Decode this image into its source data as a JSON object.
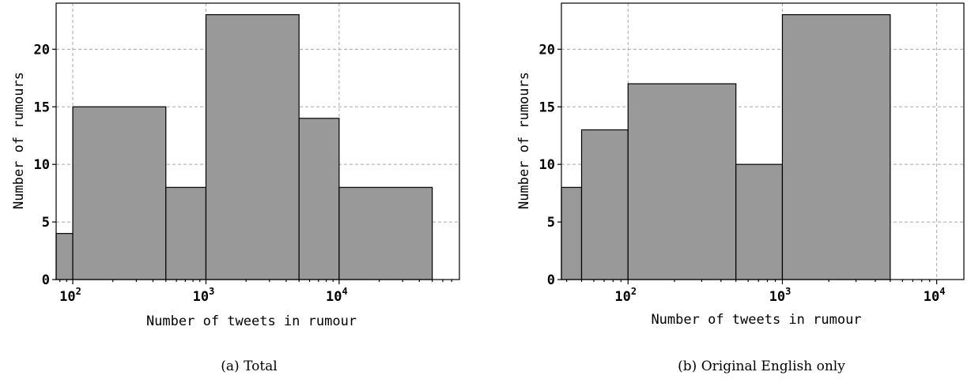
{
  "captions": [
    "(a) Total",
    "(b) Original English only"
  ],
  "colors": {
    "bar_fill": "#999999",
    "bar_edge": "#000000",
    "grid": "#a8a8a8"
  },
  "chart_data": [
    {
      "type": "bar",
      "subtype": "histogram",
      "caption": "(a) Total",
      "xlabel": "Number of tweets in rumour",
      "ylabel": "Number of rumours",
      "xscale": "log",
      "xlim": [
        75,
        80000
      ],
      "ylim": [
        0,
        24
      ],
      "yticks": [
        0,
        5,
        10,
        15,
        20
      ],
      "xticks": [
        {
          "base": "10",
          "exp": "2",
          "value": 100
        },
        {
          "base": "10",
          "exp": "3",
          "value": 1000
        },
        {
          "base": "10",
          "exp": "4",
          "value": 10000
        }
      ],
      "grid": true,
      "bins": [
        {
          "x0": 75,
          "x1": 100,
          "count": 4
        },
        {
          "x0": 100,
          "x1": 500,
          "count": 15
        },
        {
          "x0": 500,
          "x1": 1000,
          "count": 8
        },
        {
          "x0": 1000,
          "x1": 5000,
          "count": 23
        },
        {
          "x0": 5000,
          "x1": 10000,
          "count": 14
        },
        {
          "x0": 10000,
          "x1": 50000,
          "count": 8
        }
      ]
    },
    {
      "type": "bar",
      "subtype": "histogram",
      "caption": "(b) Original English only",
      "xlabel": "Number of tweets in rumour",
      "ylabel": "Number of rumours",
      "xscale": "log",
      "xlim": [
        37,
        15000
      ],
      "ylim": [
        0,
        24
      ],
      "yticks": [
        0,
        5,
        10,
        15,
        20
      ],
      "xticks": [
        {
          "base": "10",
          "exp": "2",
          "value": 100
        },
        {
          "base": "10",
          "exp": "3",
          "value": 1000
        },
        {
          "base": "10",
          "exp": "4",
          "value": 10000
        }
      ],
      "grid": true,
      "bins": [
        {
          "x0": 37,
          "x1": 50,
          "count": 8
        },
        {
          "x0": 50,
          "x1": 100,
          "count": 13
        },
        {
          "x0": 100,
          "x1": 500,
          "count": 17
        },
        {
          "x0": 500,
          "x1": 1000,
          "count": 10
        },
        {
          "x0": 1000,
          "x1": 5000,
          "count": 23
        }
      ]
    }
  ]
}
